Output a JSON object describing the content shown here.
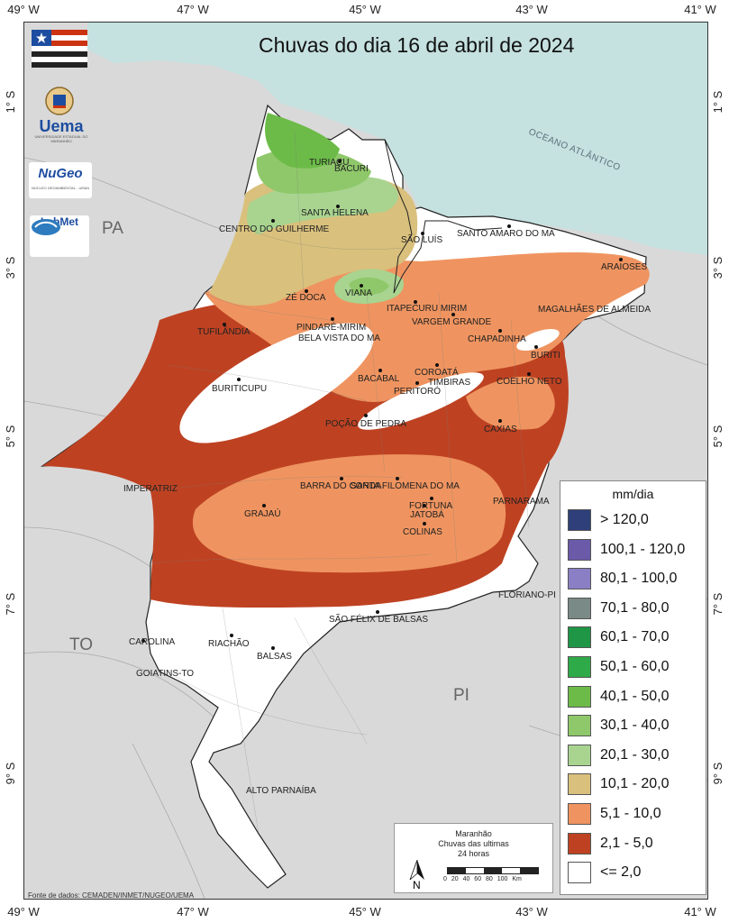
{
  "title": "Chuvas do dia 16 de abril de 2024",
  "coords": {
    "longitudes": [
      "49° W",
      "47° W",
      "45° W",
      "43° W",
      "41° W"
    ],
    "latitudes": [
      "1° S",
      "3° S",
      "5° S",
      "7° S",
      "9° S"
    ]
  },
  "regions": {
    "pa": "PA",
    "to": "TO",
    "pi": "PI",
    "ocean": "OCEANO ATLÂNTICO"
  },
  "logos": {
    "uema": "Uema",
    "uema_sub": "UNIVERSIDADE ESTADUAL DO MARANHÃO",
    "nugeo": "NuGeo",
    "nugeo_sub": "NÚCLEO GEOAMBIENTAL - UEMA",
    "labmet": "LabMet"
  },
  "cities": [
    {
      "name": "TURIAÇU"
    },
    {
      "name": "BACURI"
    },
    {
      "name": "SANTA HELENA"
    },
    {
      "name": "CENTRO DO GUILHERME"
    },
    {
      "name": "SÃO LUÍS"
    },
    {
      "name": "SANTO AMARO DO MA"
    },
    {
      "name": "ARAIOSES"
    },
    {
      "name": "ZÉ DOCA"
    },
    {
      "name": "VIANA"
    },
    {
      "name": "ITAPECURU MIRIM"
    },
    {
      "name": "MAGALHÃES DE ALMEIDA"
    },
    {
      "name": "VARGEM GRANDE"
    },
    {
      "name": "PINDARÉ-MIRIM"
    },
    {
      "name": "BELA VISTA DO MA"
    },
    {
      "name": "TUFILÂNDIA"
    },
    {
      "name": "CHAPADINHA"
    },
    {
      "name": "BURITI"
    },
    {
      "name": "BACABAL"
    },
    {
      "name": "COROATÁ"
    },
    {
      "name": "TIMBIRAS"
    },
    {
      "name": "PERITORÓ"
    },
    {
      "name": "COELHO NETO"
    },
    {
      "name": "BURITICUPU"
    },
    {
      "name": "POÇÃO DE PEDRA"
    },
    {
      "name": "CAXIAS"
    },
    {
      "name": "IMPERATRIZ"
    },
    {
      "name": "BARRA DO CORDA"
    },
    {
      "name": "SANTA FILOMENA DO MA"
    },
    {
      "name": "FORTUNA"
    },
    {
      "name": "JATOBÁ"
    },
    {
      "name": "GRAJAÚ"
    },
    {
      "name": "COLINAS"
    },
    {
      "name": "PARNARAMA"
    },
    {
      "name": "FLORIANO-PI"
    },
    {
      "name": "SÃO FÉLIX DE BALSAS"
    },
    {
      "name": "CAROLINA"
    },
    {
      "name": "RIACHÃO"
    },
    {
      "name": "BALSAS"
    },
    {
      "name": "GOIATINS-TO"
    },
    {
      "name": "ALTO PARNAÍBA"
    }
  ],
  "legend": {
    "title": "mm/dia",
    "items": [
      {
        "label": "> 120,0",
        "color": "#2e3f7a"
      },
      {
        "label": "100,1 - 120,0",
        "color": "#6a5aa8"
      },
      {
        "label": "80,1 - 100,0",
        "color": "#8a7fc4"
      },
      {
        "label": "70,1 - 80,0",
        "color": "#7a8a86"
      },
      {
        "label": "60,1 - 70,0",
        "color": "#1e9646"
      },
      {
        "label": "50,1 - 60,0",
        "color": "#2eaa48"
      },
      {
        "label": "40,1 - 50,0",
        "color": "#6cbb48"
      },
      {
        "label": "30,1 - 40,0",
        "color": "#8fc86a"
      },
      {
        "label": "20,1 - 30,0",
        "color": "#a8d490"
      },
      {
        "label": "10,1 - 20,0",
        "color": "#d9c07c"
      },
      {
        "label": "5,1 - 10,0",
        "color": "#ef9460"
      },
      {
        "label": "2,1 - 5,0",
        "color": "#be4222"
      },
      {
        "label": "<= 2,0",
        "color": "#ffffff"
      }
    ]
  },
  "scale": {
    "line1": "Maranhão",
    "line2": "Chuvas das ultimas",
    "line3": "24 horas",
    "north": "N",
    "ticks": "0 20 40 60 80 100 Km"
  },
  "source": "Fonte de dados: CEMADEN/INMET/NUGEO/UEMA",
  "colors": {
    "background": "#d9d9d9",
    "ocean": "#c5e1e0",
    "state_fill": "#ffffff"
  }
}
